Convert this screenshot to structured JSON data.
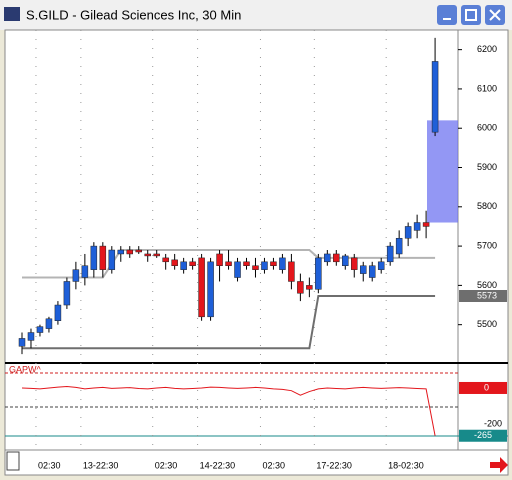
{
  "chart_data": {
    "type": "candlestick",
    "title": "S.GILD - Gilead Sciences Inc, 30 Min",
    "up_color": "#1e5fd8",
    "down_color": "#e3161c",
    "categories": [
      null,
      null,
      "02:30",
      null,
      null,
      null,
      null,
      "13-22:30",
      null,
      null,
      null,
      null,
      null,
      null,
      null,
      "02:30",
      null,
      null,
      null,
      null,
      "14-22:30",
      null,
      null,
      null,
      null,
      null,
      null,
      "02:30",
      null,
      null,
      null,
      null,
      null,
      "17-22:30",
      null,
      null,
      null,
      null,
      null,
      null,
      null,
      "18-02:30",
      null,
      null,
      null,
      null,
      null
    ],
    "open": [
      5445,
      5460,
      5480,
      5490,
      5510,
      5550,
      5610,
      5620,
      5640,
      5700,
      5640,
      5680,
      5690,
      5690,
      5680,
      5680,
      5670,
      5665,
      5640,
      5660,
      5670,
      5520,
      5680,
      5660,
      5620,
      5660,
      5650,
      5640,
      5660,
      5640,
      5660,
      5610,
      5600,
      5590,
      5660,
      5680,
      5650,
      5670,
      5630,
      5620,
      5640,
      5660,
      5680,
      5720,
      5740,
      5760,
      5990
    ],
    "high": [
      5480,
      5490,
      5500,
      5520,
      5560,
      5620,
      5660,
      5680,
      5710,
      5710,
      5700,
      5700,
      5700,
      5700,
      5690,
      5690,
      5680,
      5680,
      5670,
      5670,
      5680,
      5670,
      5690,
      5690,
      5670,
      5670,
      5670,
      5670,
      5670,
      5680,
      5680,
      5630,
      5620,
      5680,
      5690,
      5690,
      5680,
      5680,
      5660,
      5660,
      5670,
      5710,
      5740,
      5760,
      5780,
      5790,
      6230
    ],
    "low": [
      5425,
      5440,
      5470,
      5480,
      5500,
      5540,
      5590,
      5600,
      5620,
      5620,
      5630,
      5660,
      5670,
      5680,
      5660,
      5670,
      5640,
      5640,
      5630,
      5640,
      5510,
      5510,
      5610,
      5640,
      5610,
      5640,
      5620,
      5630,
      5640,
      5630,
      5590,
      5560,
      5570,
      5580,
      5650,
      5650,
      5640,
      5620,
      5610,
      5610,
      5630,
      5650,
      5670,
      5700,
      5720,
      5720,
      5980
    ],
    "close": [
      5465,
      5480,
      5495,
      5515,
      5550,
      5610,
      5640,
      5650,
      5700,
      5640,
      5690,
      5690,
      5680,
      5685,
      5675,
      5675,
      5660,
      5650,
      5660,
      5650,
      5520,
      5660,
      5650,
      5650,
      5660,
      5650,
      5640,
      5660,
      5650,
      5670,
      5610,
      5580,
      5590,
      5670,
      5680,
      5660,
      5675,
      5640,
      5650,
      5650,
      5660,
      5700,
      5720,
      5750,
      5760,
      5750,
      6170
    ],
    "levels": [
      {
        "color": "#b4b4b4",
        "values": [
          5620,
          5620,
          5620,
          5620,
          5620,
          5620,
          5620,
          5620,
          5620,
          5620,
          5655,
          5690,
          5690,
          5690,
          5690,
          5690,
          5690,
          5690,
          5690,
          5690,
          5690,
          5690,
          5690,
          5690,
          5690,
          5690,
          5690,
          5690,
          5690,
          5690,
          5690,
          5690,
          5690,
          5670,
          5670,
          5670,
          5670,
          5670,
          5670,
          5670,
          5670,
          5670,
          5670,
          5670,
          5670,
          5670,
          5670
        ]
      },
      {
        "color": "#6e6e6e",
        "values": [
          5440,
          5440,
          5440,
          5440,
          5440,
          5440,
          5440,
          5440,
          5440,
          5440,
          5440,
          5440,
          5440,
          5440,
          5440,
          5440,
          5440,
          5440,
          5440,
          5440,
          5440,
          5440,
          5440,
          5440,
          5440,
          5440,
          5440,
          5440,
          5440,
          5440,
          5440,
          5440,
          5440,
          5573,
          5573,
          5573,
          5573,
          5573,
          5573,
          5573,
          5573,
          5573,
          5573,
          5573,
          5573,
          5573,
          5573
        ]
      }
    ],
    "highlight_range": [
      5760,
      6020
    ],
    "ylim": [
      5405,
      6250
    ],
    "yticks": [
      5500,
      5600,
      5700,
      5800,
      5900,
      6000,
      6100,
      6200
    ],
    "indicator": {
      "name": "GAPW^",
      "color": "#e3161c",
      "values": [
        0,
        -2,
        -5,
        0,
        5,
        8,
        3,
        -5,
        0,
        3,
        -2,
        0,
        2,
        -3,
        -5,
        0,
        3,
        -2,
        -5,
        -3,
        0,
        5,
        3,
        0,
        -2,
        0,
        3,
        0,
        -5,
        -8,
        -15,
        -40,
        -20,
        -5,
        0,
        -3,
        -5,
        0,
        3,
        0,
        -2,
        0,
        2,
        0,
        -3,
        -5,
        -265
      ],
      "ylim": [
        -333,
        133
      ],
      "yticks": [
        0,
        -200
      ]
    }
  }
}
